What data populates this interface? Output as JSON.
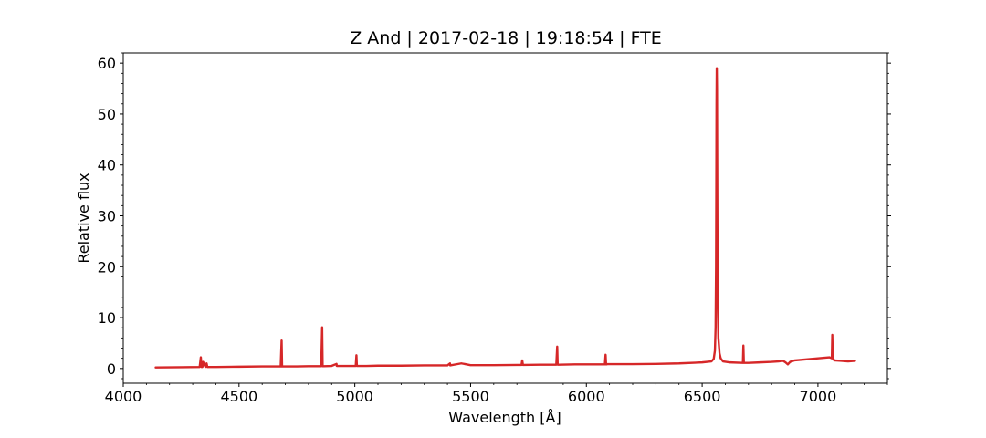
{
  "chart_data": {
    "type": "line",
    "title": "Z And | 2017-02-18 | 19:18:54 | FTE",
    "xlabel": "Wavelength [Å]",
    "ylabel": "Relative flux",
    "xlim": [
      4000,
      7300
    ],
    "ylim": [
      -2.9,
      62.0
    ],
    "x_ticks": [
      4000,
      4500,
      5000,
      5500,
      6000,
      6500,
      7000
    ],
    "y_ticks": [
      0,
      10,
      20,
      30,
      40,
      50,
      60
    ],
    "x_minor_step": 100,
    "y_minor_step": 2,
    "grid": false,
    "legend": "none",
    "series": [
      {
        "color": "#d62728",
        "x": [
          4140,
          4250,
          4330,
          4335,
          4338,
          4342,
          4345,
          4355,
          4360,
          4363,
          4367,
          4400,
          4500,
          4600,
          4680,
          4684,
          4686,
          4688,
          4692,
          4750,
          4800,
          4855,
          4859,
          4861,
          4863,
          4867,
          4900,
          4921,
          4922,
          4950,
          5004,
          5007,
          5009,
          5012,
          5050,
          5100,
          5200,
          5300,
          5400,
          5411,
          5412,
          5460,
          5500,
          5600,
          5700,
          5720,
          5723,
          5726,
          5800,
          5870,
          5874,
          5876,
          5878,
          5882,
          5950,
          6000,
          6080,
          6083,
          6085,
          6087,
          6090,
          6150,
          6200,
          6300,
          6400,
          6500,
          6540,
          6550,
          6555,
          6558,
          6560,
          6561,
          6562,
          6563,
          6564,
          6565,
          6566,
          6568,
          6570,
          6575,
          6580,
          6590,
          6620,
          6676,
          6678,
          6680,
          6682,
          6684,
          6700,
          6750,
          6800,
          6830,
          6850,
          6860,
          6870,
          6880,
          6900,
          6950,
          7000,
          7050,
          7060,
          7062,
          7064,
          7066,
          7070,
          7100,
          7130,
          7160
        ],
        "y": [
          0.2,
          0.25,
          0.3,
          2.2,
          0.3,
          0.3,
          1.3,
          0.3,
          1.0,
          0.3,
          0.3,
          0.3,
          0.35,
          0.4,
          0.4,
          5.5,
          0.4,
          0.4,
          0.4,
          0.4,
          0.45,
          0.45,
          8.1,
          0.45,
          0.45,
          0.45,
          0.5,
          0.9,
          0.5,
          0.5,
          0.5,
          2.6,
          0.5,
          0.5,
          0.5,
          0.55,
          0.55,
          0.6,
          0.6,
          1.0,
          0.6,
          1.0,
          0.65,
          0.65,
          0.7,
          0.7,
          1.6,
          0.7,
          0.75,
          0.75,
          4.3,
          0.75,
          0.75,
          0.75,
          0.8,
          0.8,
          0.8,
          2.7,
          0.8,
          0.8,
          0.85,
          0.85,
          0.85,
          0.9,
          1.0,
          1.2,
          1.4,
          1.9,
          3.5,
          8.0,
          20.0,
          35.0,
          52.0,
          59.0,
          55.0,
          40.0,
          25.0,
          12.0,
          6.0,
          3.0,
          2.0,
          1.4,
          1.2,
          1.1,
          4.5,
          1.1,
          1.1,
          1.1,
          1.1,
          1.2,
          1.3,
          1.4,
          1.5,
          1.2,
          0.8,
          1.3,
          1.6,
          1.8,
          2.0,
          2.2,
          2.0,
          6.6,
          2.0,
          2.0,
          1.6,
          1.5,
          1.4,
          1.5
        ]
      }
    ]
  }
}
